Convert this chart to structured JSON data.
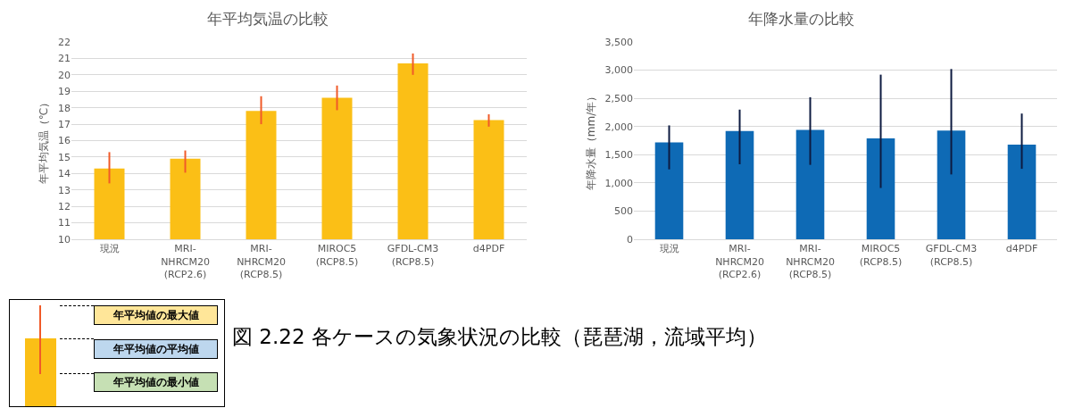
{
  "chart_data": [
    {
      "type": "bar",
      "title": "年平均気温の比較",
      "ylabel": "年平均気温（℃）",
      "categories": [
        "現況",
        "MRI-NHRCM20 (RCP2.6)",
        "MRI-NHRCM20 (RCP8.5)",
        "MIROC5 (RCP8.5)",
        "GFDL-CM3 (RCP8.5)",
        "d4PDF"
      ],
      "series": [
        {
          "color": "#fbbf16",
          "values": [
            14.3,
            14.9,
            17.8,
            18.6,
            20.7,
            17.25
          ],
          "errors": [
            [
              13.4,
              15.3
            ],
            [
              14.05,
              15.4
            ],
            [
              17.0,
              18.7
            ],
            [
              17.85,
              19.35
            ],
            [
              20.0,
              21.3
            ],
            [
              16.85,
              17.6
            ]
          ]
        }
      ],
      "ylim": [
        10,
        22
      ],
      "yticks": [
        10,
        11,
        12,
        13,
        14,
        15,
        16,
        17,
        18,
        19,
        20,
        21,
        22
      ],
      "grid": "y",
      "annotations": [
        "年平均値の最大値",
        "年平均値の平均値",
        "年平均値の最小値",
        "図 2.22 各ケースの気象状況の比較（琵琶湖，流域平均）"
      ]
    },
    {
      "type": "bar",
      "title": "年降水量の比較",
      "ylabel": "年降水量（mm/年）",
      "categories": [
        "現況",
        "MRI-NHRCM20 (RCP2.6)",
        "MRI-NHRCM20 (RCP8.5)",
        "MIROC5 (RCP8.5)",
        "GFDL-CM3 (RCP8.5)",
        "d4PDF"
      ],
      "series": [
        {
          "color": "#0e6ab5",
          "values": [
            1720,
            1920,
            1940,
            1790,
            1930,
            1680
          ],
          "errors": [
            [
              1240,
              2020
            ],
            [
              1330,
              2300
            ],
            [
              1320,
              2520
            ],
            [
              910,
              2920
            ],
            [
              1150,
              3020
            ],
            [
              1250,
              2230
            ]
          ]
        }
      ],
      "ylim": [
        0,
        3500
      ],
      "yticks": [
        0,
        {
          "value": 500,
          "label": "500"
        },
        {
          "value": 1000,
          "label": "1,000"
        },
        {
          "value": 1500,
          "label": "1,500"
        },
        {
          "value": 2000,
          "label": "2,000"
        },
        {
          "value": 2500,
          "label": "2,500"
        },
        {
          "value": 3000,
          "label": "3,000"
        },
        {
          "value": 3500,
          "label": "3,500"
        }
      ],
      "grid": "y"
    }
  ]
}
